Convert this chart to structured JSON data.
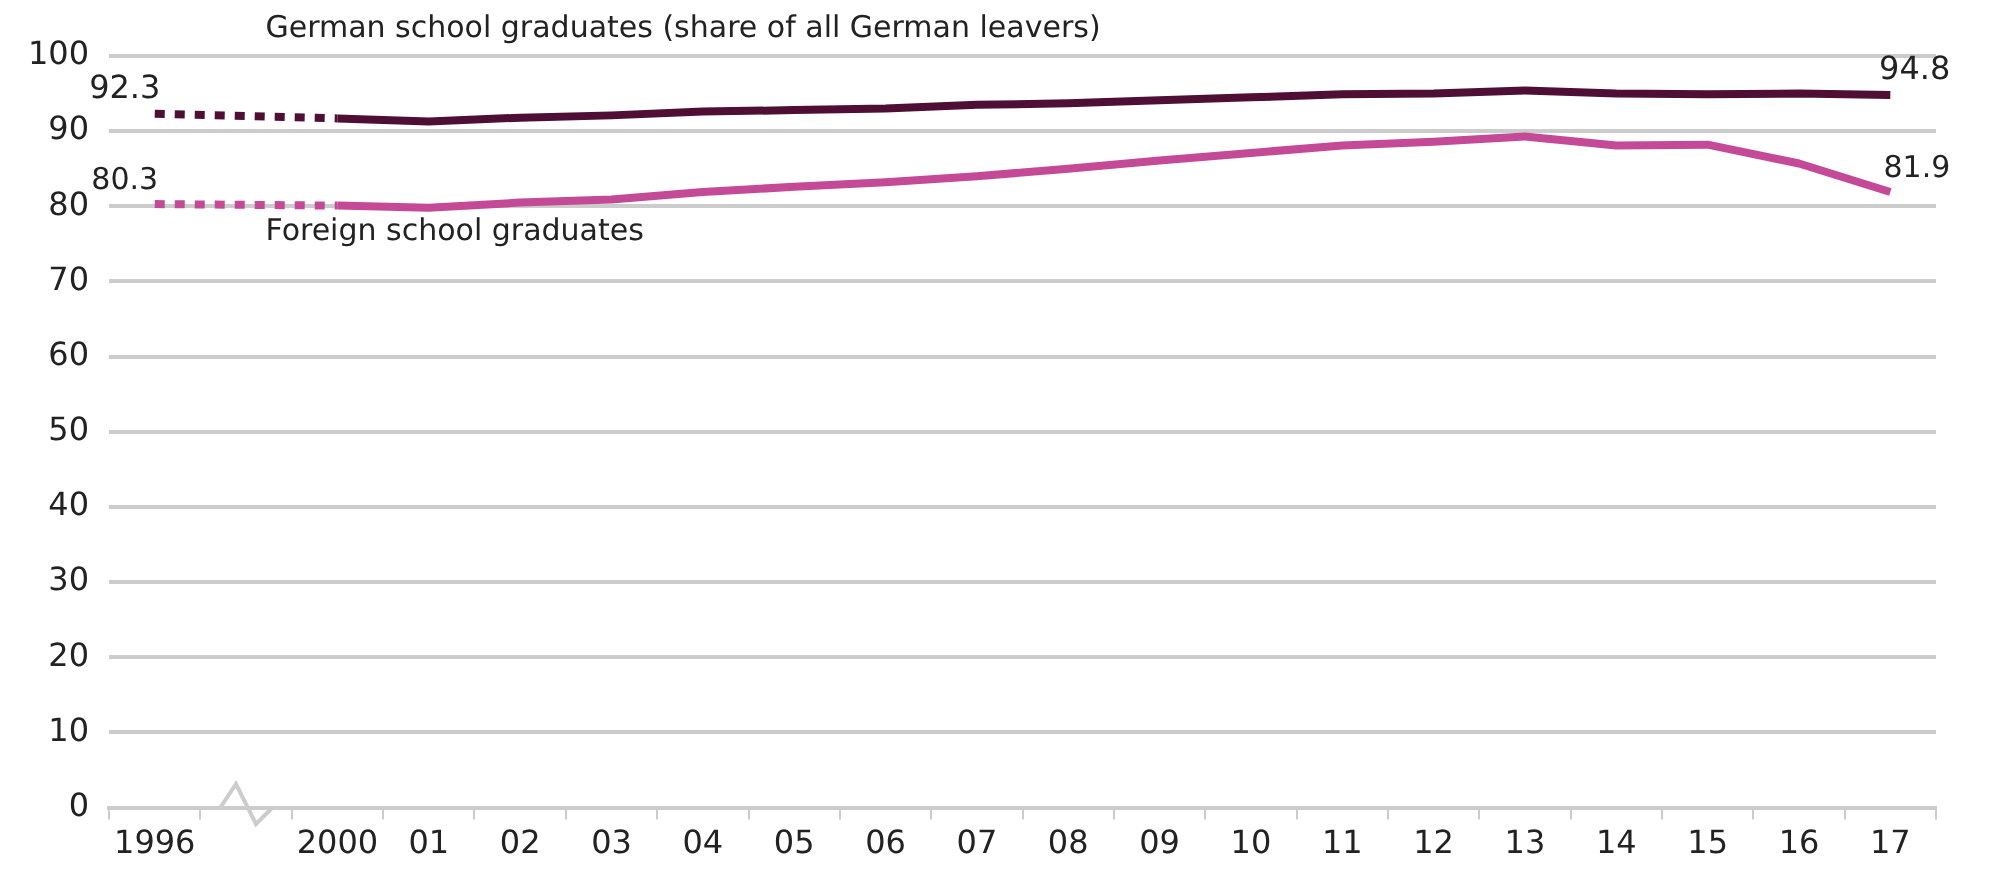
{
  "chart_data": {
    "type": "line",
    "categories": [
      "1996",
      null,
      "2000",
      "01",
      "02",
      "03",
      "04",
      "05",
      "06",
      "07",
      "08",
      "09",
      "10",
      "11",
      "12",
      "13",
      "14",
      "15",
      "16",
      "17"
    ],
    "series": [
      {
        "name": "German school graduates (share of all German leavers)",
        "color": "#4f0f35",
        "values": [
          92.3,
          null,
          91.7,
          91.3,
          91.8,
          92.1,
          92.6,
          92.8,
          93.0,
          93.5,
          93.7,
          94.1,
          94.5,
          94.9,
          95.0,
          95.4,
          95.0,
          94.9,
          95.0,
          94.8
        ],
        "value_labels": [
          "92.3",
          null,
          null,
          null,
          null,
          null,
          null,
          null,
          null,
          null,
          null,
          null,
          null,
          null,
          null,
          null,
          null,
          null,
          null,
          "94.8"
        ]
      },
      {
        "name": "Foreign school graduates",
        "color": "#c44a98",
        "values": [
          80.3,
          null,
          80.1,
          79.8,
          80.5,
          80.9,
          81.9,
          82.6,
          83.2,
          84.0,
          85.0,
          86.1,
          87.1,
          88.1,
          88.6,
          89.3,
          88.1,
          88.2,
          85.7,
          81.9
        ],
        "value_labels": [
          "80.3",
          null,
          null,
          null,
          null,
          null,
          null,
          null,
          null,
          null,
          null,
          null,
          null,
          null,
          null,
          null,
          null,
          null,
          null,
          "81.9"
        ]
      }
    ],
    "ylim": [
      0,
      100
    ],
    "yticks": [
      0,
      10,
      20,
      30,
      40,
      50,
      60,
      70,
      80,
      90,
      100
    ],
    "grid": "y",
    "legend": false,
    "marker": "none",
    "line_style": "solid"
  }
}
